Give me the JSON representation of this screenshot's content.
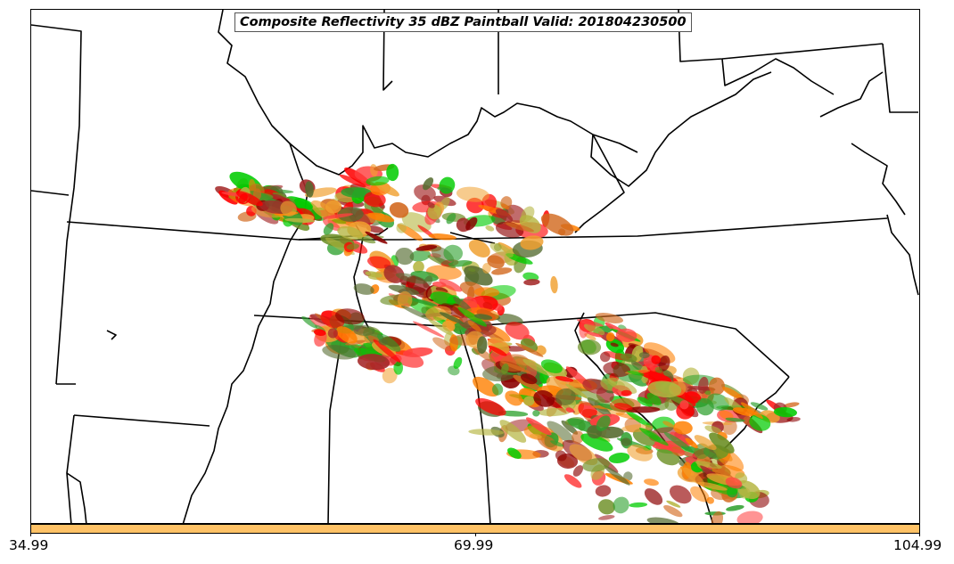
{
  "title": "Composite Reflectivity 35 dBZ Paintball Valid: 201804230500",
  "colorbar": {
    "color": "#ffc266",
    "ticks": [
      "34.99",
      "69.99",
      "104.99"
    ]
  },
  "member_colors": [
    "#ff0000",
    "#ff7f00",
    "#8b0000",
    "#2ca02c",
    "#00cc00",
    "#6b8e23",
    "#556b2f",
    "#f0a030",
    "#b5b540",
    "#a52a2a",
    "#ff4040",
    "#d2691e"
  ]
}
